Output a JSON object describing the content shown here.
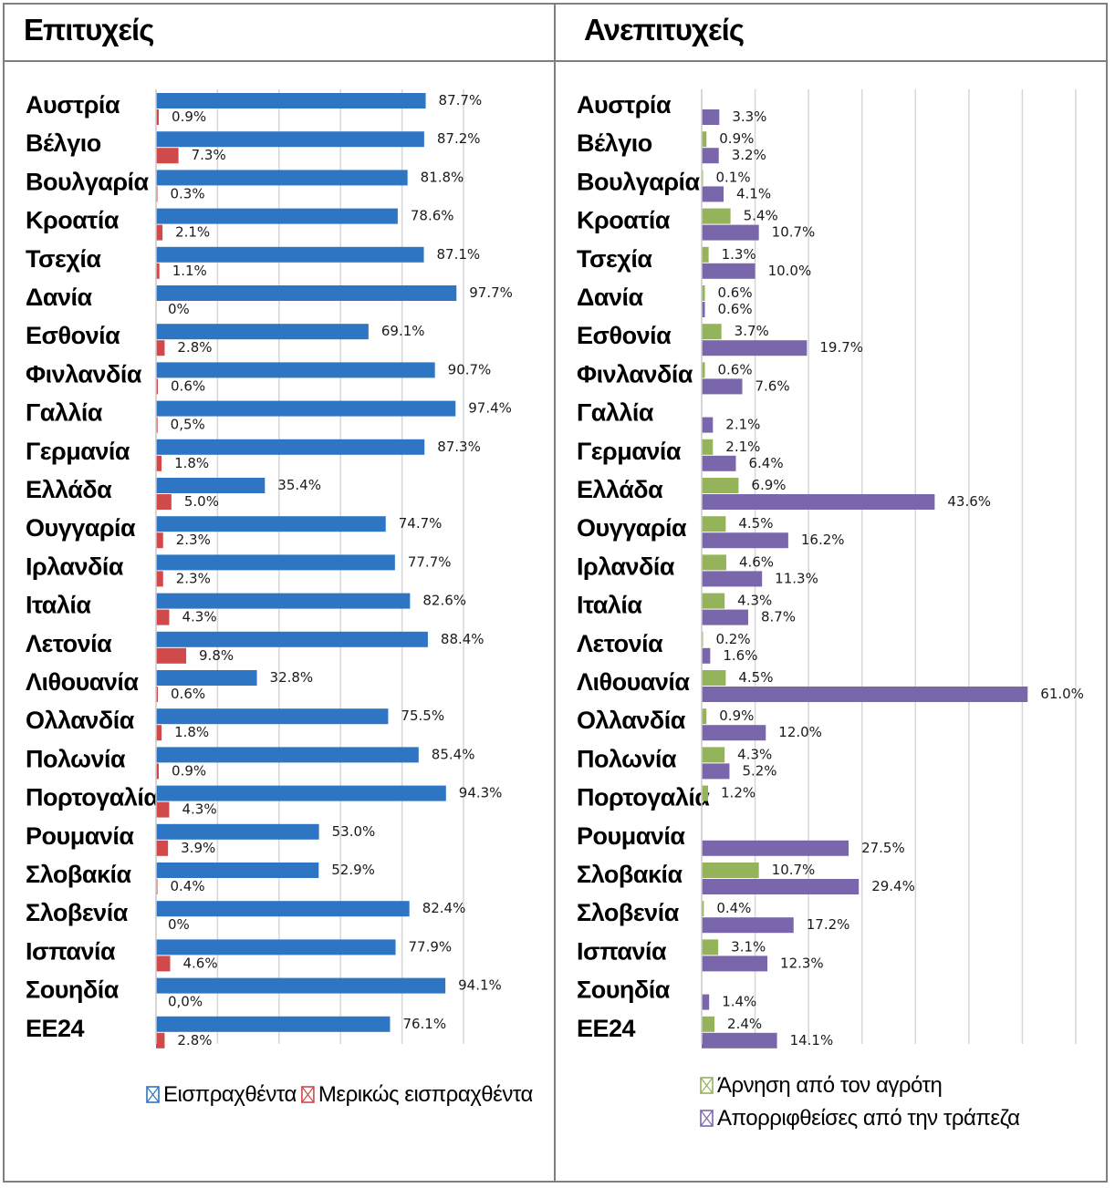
{
  "titles": {
    "left": "Επιτυχείς",
    "right": "Ανεπιτυχείς"
  },
  "chart_data": [
    {
      "type": "bar",
      "title": "Επιτυχείς",
      "orientation": "horizontal",
      "xlim": [
        0,
        100
      ],
      "grid": true,
      "legend_position": "bottom",
      "categories": [
        "Αυστρία",
        "Βέλγιο",
        "Βουλγαρία",
        "Κροατία",
        "Τσεχία",
        "Δανία",
        "Εσθονία",
        "Φινλανδία",
        "Γαλλία",
        "Γερμανία",
        "Ελλάδα",
        "Ουγγαρία",
        "Ιρλανδία",
        "Ιταλία",
        "Λετονία",
        "Λιθουανία",
        "Ολλανδία",
        "Πολωνία",
        "Πορτογαλία",
        "Ρουμανία",
        "Σλοβακία",
        "Σλοβενία",
        "Ισπανία",
        "Σουηδία",
        "ΕΕ24"
      ],
      "series": [
        {
          "name": "Εισπραχθέντα",
          "color": "#2e75c3",
          "values": [
            87.7,
            87.2,
            81.8,
            78.6,
            87.1,
            97.7,
            69.1,
            90.7,
            97.4,
            87.3,
            35.4,
            74.7,
            77.7,
            82.6,
            88.4,
            32.8,
            75.5,
            85.4,
            94.3,
            53.0,
            52.9,
            82.4,
            77.9,
            94.1,
            76.1
          ],
          "labels": [
            "87.7%",
            "87.2%",
            "81.8%",
            "78.6%",
            "87.1%",
            "97.7%",
            "69.1%",
            "90.7%",
            "97.4%",
            "87.3%",
            "35.4%",
            "74.7%",
            "77.7%",
            "82.6%",
            "88.4%",
            "32.8%",
            "75.5%",
            "85.4%",
            "94.3%",
            "53.0%",
            "52.9%",
            "82.4%",
            "77.9%",
            "94.1%",
            "76.1%"
          ]
        },
        {
          "name": "Μερικώς εισπραχθέντα",
          "color": "#d0494b",
          "values": [
            0.9,
            7.3,
            0.3,
            2.1,
            1.1,
            0,
            2.8,
            0.6,
            0.5,
            1.8,
            5.0,
            2.3,
            2.3,
            4.3,
            9.8,
            0.6,
            1.8,
            0.9,
            4.3,
            3.9,
            0.4,
            0,
            4.6,
            0,
            2.8
          ],
          "labels": [
            "0.9%",
            "7.3%",
            "0.3%",
            "2.1%",
            "1.1%",
            "0%",
            "2.8%",
            "0.6%",
            "0,5%",
            "1.8%",
            "5.0%",
            "2.3%",
            "2.3%",
            "4.3%",
            "9.8%",
            "0.6%",
            "1.8%",
            "0.9%",
            "4.3%",
            "3.9%",
            "0.4%",
            "0%",
            "4.6%",
            "0,0%",
            "2.8%"
          ]
        }
      ]
    },
    {
      "type": "bar",
      "title": "Ανεπιτυχείς",
      "orientation": "horizontal",
      "xlim": [
        0,
        70
      ],
      "grid": true,
      "legend_position": "bottom",
      "categories": [
        "Αυστρία",
        "Βέλγιο",
        "Βουλγαρία",
        "Κροατία",
        "Τσεχία",
        "Δανία",
        "Εσθονία",
        "Φινλανδία",
        "Γαλλία",
        "Γερμανία",
        "Ελλάδα",
        "Ουγγαρία",
        "Ιρλανδία",
        "Ιταλία",
        "Λετονία",
        "Λιθουανία",
        "Ολλανδία",
        "Πολωνία",
        "Πορτογαλία",
        "Ρουμανία",
        "Σλοβακία",
        "Σλοβενία",
        "Ισπανία",
        "Σουηδία",
        "ΕΕ24"
      ],
      "series": [
        {
          "name": "Άρνηση από τον αγρότη",
          "color": "#94b35a",
          "values": [
            null,
            0.9,
            0.1,
            5.4,
            1.3,
            0.6,
            3.7,
            0.6,
            null,
            2.1,
            6.9,
            4.5,
            4.6,
            4.3,
            0.2,
            4.5,
            0.9,
            4.3,
            1.2,
            null,
            10.7,
            0.4,
            3.1,
            null,
            2.4
          ],
          "labels": [
            "",
            "0.9%",
            "0.1%",
            "5.4%",
            "1.3%",
            "0.6%",
            "3.7%",
            "0.6%",
            "",
            "2.1%",
            "6.9%",
            "4.5%",
            "4.6%",
            "4.3%",
            "0.2%",
            "4.5%",
            "0.9%",
            "4.3%",
            "1.2%",
            "",
            "10.7%",
            "0.4%",
            "3.1%",
            "",
            "2.4%"
          ]
        },
        {
          "name": "Απορριφθείσες από την τράπεζα",
          "color": "#7a67ab",
          "values": [
            3.3,
            3.2,
            4.1,
            10.7,
            10.0,
            0.6,
            19.7,
            7.6,
            2.1,
            6.4,
            43.6,
            16.2,
            11.3,
            8.7,
            1.6,
            61.0,
            12.0,
            5.2,
            null,
            27.5,
            29.4,
            17.2,
            12.3,
            1.4,
            14.1
          ],
          "labels": [
            "3.3%",
            "3.2%",
            "4.1%",
            "10.7%",
            "10.0%",
            "0.6%",
            "19.7%",
            "7.6%",
            "2.1%",
            "6.4%",
            "43.6%",
            "16.2%",
            "11.3%",
            "8.7%",
            "1.6%",
            "61.0%",
            "12.0%",
            "5.2%",
            "",
            "27.5%",
            "29.4%",
            "17.2%",
            "12.3%",
            "1.4%",
            "14.1%"
          ]
        }
      ]
    }
  ]
}
